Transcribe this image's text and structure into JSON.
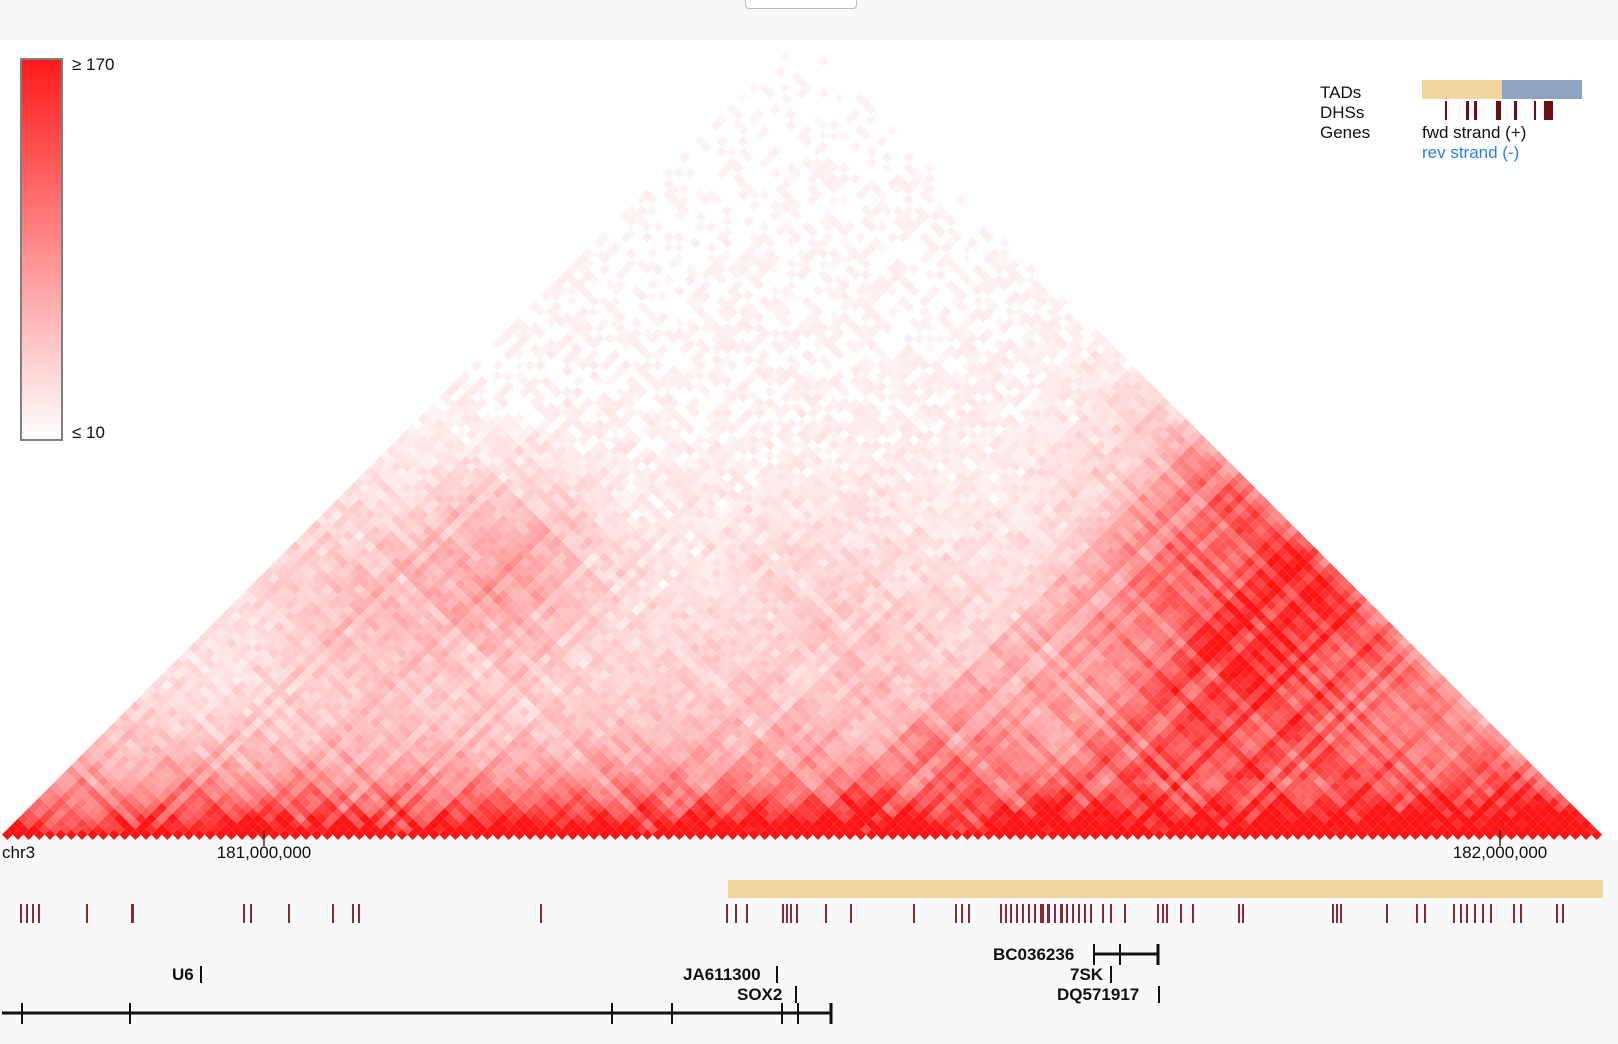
{
  "chart_data": {
    "type": "heatmap",
    "chromosome": "chr3",
    "ticks": [
      {
        "label": "181,000,000",
        "position": 181000000
      },
      {
        "label": "182,000,000",
        "position": 182000000
      }
    ],
    "region": [
      180946000,
      182015000
    ],
    "color_scale": {
      "max_label": "≥ 170",
      "min_label": "≤ 10",
      "max": 170,
      "min": 10,
      "high_color": "#ff1a1a",
      "low_color": "#ffffff"
    },
    "legend": {
      "tracks": [
        "TADs",
        "DHSs",
        "Genes"
      ],
      "fwd_label": "fwd strand (+)",
      "rev_label": "rev strand (-)",
      "tad_colors": [
        "#f1d6a0",
        "#8fa3c4"
      ],
      "dhs_color": "#6b0f12",
      "rev_color": "#2f7de1"
    },
    "tads": [
      {
        "start": 181430000,
        "end": 182010000,
        "color": "#f1d6a0"
      }
    ],
    "dhs": [
      181013000,
      181025000
    ],
    "genes": [
      {
        "name": "U6",
        "position": 181120000,
        "strand": "+"
      },
      {
        "name": "JA611300",
        "position": 181665000,
        "strand": "+"
      },
      {
        "name": "SOX2",
        "position": 181712000,
        "strand": "+"
      },
      {
        "name": "BC036236",
        "position": 181775000,
        "strand": "+"
      },
      {
        "name": "7SK",
        "position": 181778000,
        "strand": "+"
      },
      {
        "name": "DQ571917",
        "position": 181810000,
        "strand": "+"
      }
    ],
    "contact_hotspots": [
      {
        "name": "upper-right domain corner",
        "intensity": 0.55
      },
      {
        "name": "left domain corner",
        "intensity": 0.35
      }
    ]
  }
}
